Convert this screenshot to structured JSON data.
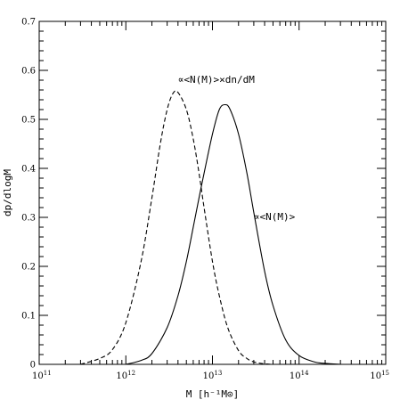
{
  "chart_data": {
    "type": "line",
    "xscale": "log",
    "xlim": [
      100000000000.0,
      1000000000000000.0
    ],
    "ylim": [
      0,
      0.7
    ],
    "xlabel": "M [h⁻¹M⊙]",
    "ylabel": "dp/dlogM",
    "x_ticks": [
      {
        "base": "10",
        "exp": "11"
      },
      {
        "base": "10",
        "exp": "12"
      },
      {
        "base": "10",
        "exp": "13"
      },
      {
        "base": "10",
        "exp": "14"
      },
      {
        "base": "10",
        "exp": "15"
      }
    ],
    "y_ticks": [
      "0",
      "0.1",
      "0.2",
      "0.3",
      "0.4",
      "0.5",
      "0.6",
      "0.7"
    ],
    "grid": false,
    "series": [
      {
        "name": "∝<N(M)>×dn/dM",
        "style": "dashed",
        "color": "#000000",
        "x": [
          300000000000.0,
          500000000000.0,
          700000000000.0,
          1000000000000.0,
          1500000000000.0,
          2000000000000.0,
          2500000000000.0,
          3000000000000.0,
          3500000000000.0,
          4000000000000.0,
          5000000000000.0,
          6000000000000.0,
          7000000000000.0,
          8000000000000.0,
          10000000000000.0,
          12000000000000.0,
          15000000000000.0,
          20000000000000.0,
          25000000000000.0,
          30000000000000.0,
          40000000000000.0,
          50000000000000.0
        ],
        "y": [
          0.0,
          0.012,
          0.03,
          0.085,
          0.21,
          0.34,
          0.45,
          0.52,
          0.553,
          0.555,
          0.52,
          0.46,
          0.39,
          0.32,
          0.21,
          0.14,
          0.075,
          0.028,
          0.012,
          0.005,
          0.001,
          0.0
        ]
      },
      {
        "name": "∝<N(M)>",
        "style": "solid",
        "color": "#000000",
        "x": [
          1000000000000.0,
          1500000000000.0,
          2000000000000.0,
          3000000000000.0,
          4000000000000.0,
          5000000000000.0,
          6000000000000.0,
          7000000000000.0,
          8000000000000.0,
          10000000000000.0,
          12000000000000.0,
          14000000000000.0,
          16000000000000.0,
          20000000000000.0,
          25000000000000.0,
          30000000000000.0,
          40000000000000.0,
          50000000000000.0,
          70000000000000.0,
          100000000000000.0,
          150000000000000.0,
          200000000000000.0,
          300000000000000.0
        ],
        "y": [
          0.0,
          0.008,
          0.022,
          0.075,
          0.14,
          0.21,
          0.28,
          0.34,
          0.39,
          0.47,
          0.52,
          0.53,
          0.52,
          0.47,
          0.39,
          0.31,
          0.19,
          0.12,
          0.05,
          0.018,
          0.005,
          0.002,
          0.0
        ]
      }
    ],
    "annotations": [
      {
        "text": "∝<N(M)>×dn/dM",
        "x": 4000000000000.0,
        "y": 0.575
      },
      {
        "text": "∝<N(M)>",
        "x": 30000000000000.0,
        "y": 0.295
      }
    ]
  }
}
